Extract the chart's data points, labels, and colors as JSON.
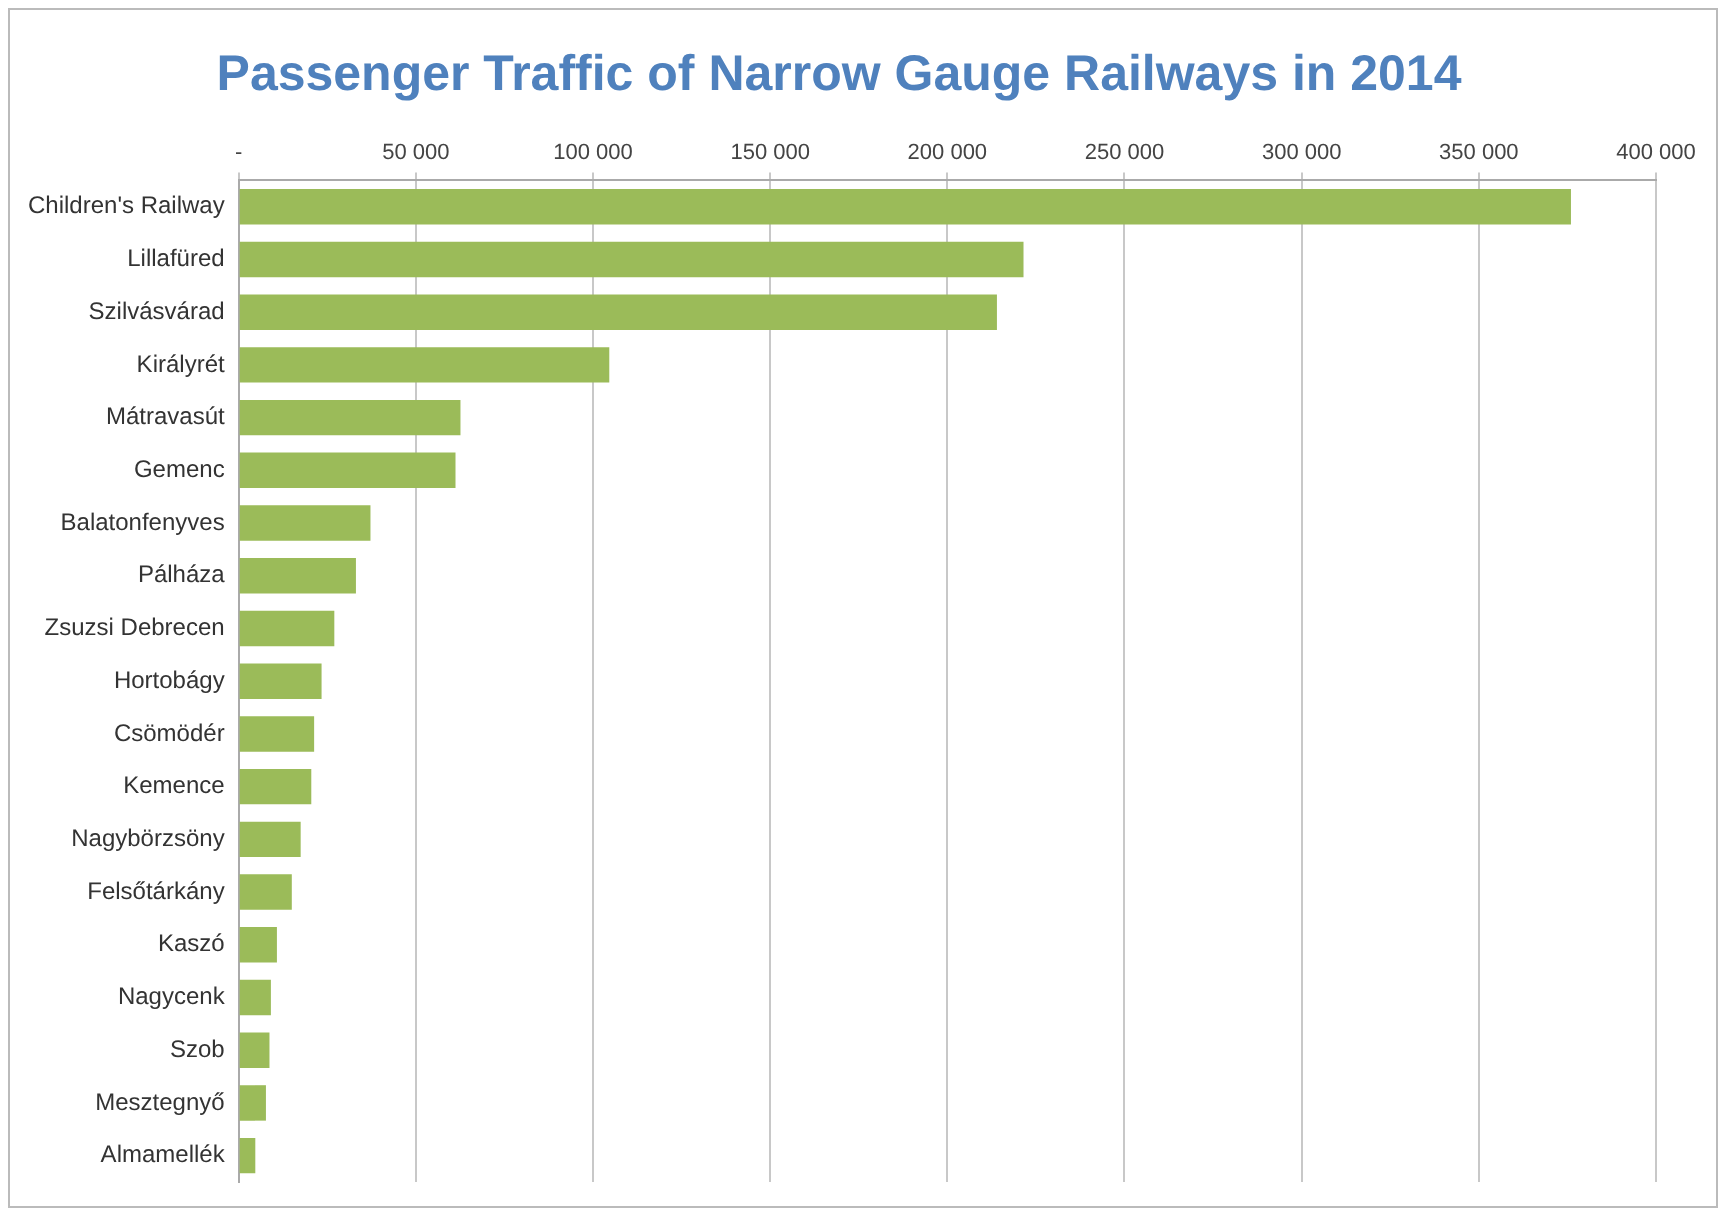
{
  "chart_data": {
    "type": "bar",
    "orientation": "horizontal",
    "title": "Passenger Traffic of Narrow Gauge Railways in 2014",
    "categories": [
      "Children's Railway",
      "Lillafüred",
      "Szilvásvárad",
      "Királyrét",
      "Mátravasút",
      "Gemenc",
      "Balatonfenyves",
      "Pálháza",
      "Zsuzsi Debrecen",
      "Hortobágy",
      "Csömödér",
      "Kemence",
      "Nagybörzsöny",
      "Felsőtárkány",
      "Kaszó",
      "Nagycenk",
      "Szob",
      "Mesztegnyő",
      "Almamellék"
    ],
    "values": [
      376000,
      221500,
      214000,
      104600,
      62600,
      61200,
      37200,
      33100,
      27000,
      23400,
      21300,
      20500,
      17500,
      15000,
      10800,
      9100,
      8700,
      7700,
      4700
    ],
    "color": "#9bbb59",
    "xlim": [
      0,
      400000
    ],
    "xticks": [
      {
        "value": 0,
        "label": "-"
      },
      {
        "value": 50000,
        "label": "50 000"
      },
      {
        "value": 100000,
        "label": "100 000"
      },
      {
        "value": 150000,
        "label": "150 000"
      },
      {
        "value": 200000,
        "label": "200 000"
      },
      {
        "value": 250000,
        "label": "250 000"
      },
      {
        "value": 300000,
        "label": "300 000"
      },
      {
        "value": 350000,
        "label": "350 000"
      },
      {
        "value": 400000,
        "label": "400 000"
      }
    ],
    "grid": "x"
  }
}
